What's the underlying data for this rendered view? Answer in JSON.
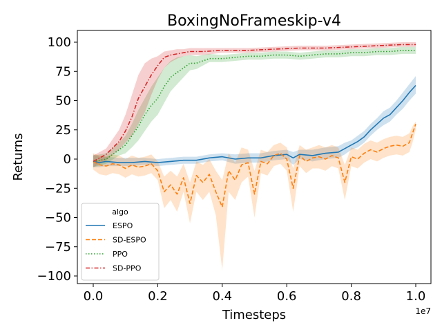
{
  "chart_data": {
    "type": "line",
    "title": "BoxingNoFrameskip-v4",
    "xlabel": "Timesteps",
    "ylabel": "Returns",
    "x_offset_label": "1e7",
    "xlim": [
      -0.025,
      1.05
    ],
    "ylim": [
      -110,
      110
    ],
    "xticks": [
      0.0,
      0.2,
      0.4,
      0.6,
      0.8,
      1.0
    ],
    "xtick_labels": [
      "0.0",
      "0.2",
      "0.4",
      "0.6",
      "0.8",
      "1.0"
    ],
    "yticks": [
      -100,
      -75,
      -50,
      -25,
      0,
      25,
      50,
      75,
      100
    ],
    "ytick_labels": [
      "−100",
      "−75",
      "−50",
      "−25",
      "0",
      "25",
      "50",
      "75",
      "100"
    ],
    "legend": {
      "title": "algo",
      "placement": "lower-left"
    },
    "series": [
      {
        "name": "ESPO",
        "color": "#1f77b4",
        "dash": "solid",
        "x": [
          0.0,
          0.02,
          0.04,
          0.08,
          0.12,
          0.16,
          0.2,
          0.24,
          0.28,
          0.32,
          0.36,
          0.4,
          0.44,
          0.48,
          0.52,
          0.56,
          0.6,
          0.62,
          0.64,
          0.68,
          0.72,
          0.76,
          0.78,
          0.8,
          0.82,
          0.84,
          0.86,
          0.88,
          0.9,
          0.92,
          0.94,
          0.96,
          0.98,
          1.0
        ],
        "y": [
          -2,
          -3,
          -2,
          -3,
          -3,
          -2,
          -3,
          -2,
          -1,
          -1,
          1,
          2,
          0,
          1,
          1,
          3,
          4,
          1,
          4,
          3,
          5,
          6,
          9,
          12,
          15,
          19,
          25,
          30,
          35,
          38,
          44,
          50,
          57,
          63
        ],
        "upper": [
          4,
          2,
          2,
          1,
          1,
          1,
          0,
          1,
          2,
          2,
          4,
          5,
          4,
          5,
          5,
          7,
          8,
          6,
          8,
          8,
          10,
          11,
          14,
          16,
          20,
          24,
          30,
          35,
          41,
          44,
          50,
          57,
          64,
          71
        ],
        "lower": [
          -7,
          -7,
          -6,
          -6,
          -6,
          -5,
          -6,
          -5,
          -4,
          -4,
          -2,
          -1,
          -4,
          -3,
          -3,
          -1,
          0,
          -5,
          0,
          -2,
          0,
          1,
          4,
          8,
          10,
          14,
          20,
          25,
          29,
          32,
          38,
          43,
          50,
          56
        ]
      },
      {
        "name": "SD-ESPO",
        "color": "#ff7f0e",
        "dash": "dashed",
        "x": [
          0.0,
          0.02,
          0.04,
          0.06,
          0.08,
          0.1,
          0.12,
          0.14,
          0.16,
          0.18,
          0.2,
          0.22,
          0.24,
          0.26,
          0.28,
          0.3,
          0.32,
          0.34,
          0.36,
          0.38,
          0.4,
          0.42,
          0.44,
          0.46,
          0.48,
          0.5,
          0.52,
          0.54,
          0.56,
          0.58,
          0.6,
          0.62,
          0.64,
          0.66,
          0.68,
          0.7,
          0.72,
          0.74,
          0.76,
          0.78,
          0.8,
          0.82,
          0.84,
          0.86,
          0.88,
          0.9,
          0.92,
          0.94,
          0.96,
          0.98,
          0.99,
          1.0
        ],
        "y": [
          -2,
          -5,
          -6,
          -4,
          -5,
          -8,
          -5,
          -7,
          -6,
          -4,
          -10,
          -28,
          -22,
          -30,
          -16,
          -38,
          -14,
          -20,
          -13,
          -28,
          -41,
          -10,
          -18,
          -5,
          -3,
          -30,
          -2,
          -4,
          3,
          5,
          0,
          -25,
          3,
          -2,
          1,
          2,
          0,
          3,
          1,
          -20,
          2,
          0,
          5,
          8,
          6,
          9,
          11,
          12,
          11,
          14,
          22,
          30
        ],
        "upper": [
          5,
          3,
          2,
          4,
          3,
          0,
          3,
          1,
          2,
          4,
          -2,
          -15,
          -10,
          -15,
          -4,
          -20,
          -2,
          -5,
          0,
          -10,
          -18,
          5,
          -3,
          10,
          8,
          -10,
          8,
          6,
          12,
          14,
          10,
          -8,
          12,
          8,
          10,
          12,
          10,
          12,
          10,
          -5,
          10,
          8,
          13,
          16,
          14,
          17,
          19,
          20,
          19,
          22,
          28,
          32
        ],
        "lower": [
          -9,
          -13,
          -14,
          -12,
          -13,
          -16,
          -13,
          -15,
          -14,
          -12,
          -18,
          -42,
          -35,
          -45,
          -28,
          -55,
          -28,
          -35,
          -28,
          -48,
          -95,
          -28,
          -35,
          -20,
          -15,
          -50,
          -12,
          -14,
          -6,
          -4,
          -10,
          -45,
          -6,
          -12,
          -8,
          -8,
          -10,
          -6,
          -8,
          -35,
          -6,
          -8,
          -3,
          0,
          -2,
          1,
          3,
          4,
          3,
          6,
          14,
          25
        ]
      },
      {
        "name": "PPO",
        "color": "#2ca02c",
        "dash": "dotted",
        "x": [
          0.0,
          0.04,
          0.08,
          0.1,
          0.12,
          0.14,
          0.16,
          0.18,
          0.2,
          0.22,
          0.24,
          0.26,
          0.28,
          0.3,
          0.32,
          0.34,
          0.36,
          0.4,
          0.44,
          0.48,
          0.52,
          0.56,
          0.6,
          0.64,
          0.68,
          0.72,
          0.76,
          0.8,
          0.84,
          0.88,
          0.92,
          0.96,
          1.0
        ],
        "y": [
          -2,
          0,
          8,
          12,
          20,
          28,
          38,
          46,
          52,
          62,
          70,
          74,
          78,
          82,
          82,
          84,
          86,
          86,
          87,
          88,
          88,
          89,
          89,
          88,
          89,
          90,
          90,
          91,
          91,
          92,
          92,
          93,
          93
        ],
        "upper": [
          3,
          5,
          14,
          20,
          30,
          42,
          52,
          62,
          70,
          78,
          84,
          87,
          88,
          89,
          88,
          89,
          90,
          89,
          90,
          91,
          91,
          92,
          92,
          91,
          92,
          93,
          93,
          94,
          94,
          95,
          95,
          96,
          96
        ],
        "lower": [
          -7,
          -4,
          3,
          5,
          10,
          16,
          24,
          32,
          38,
          48,
          58,
          64,
          70,
          76,
          77,
          80,
          83,
          83,
          84,
          85,
          85,
          86,
          86,
          85,
          86,
          87,
          87,
          88,
          88,
          89,
          89,
          90,
          90
        ]
      },
      {
        "name": "SD-PPO",
        "color": "#d62728",
        "dash": "dashdot",
        "x": [
          0.0,
          0.04,
          0.08,
          0.1,
          0.12,
          0.14,
          0.16,
          0.18,
          0.2,
          0.22,
          0.24,
          0.26,
          0.28,
          0.3,
          0.34,
          0.4,
          0.48,
          0.56,
          0.64,
          0.72,
          0.8,
          0.88,
          0.96,
          1.0
        ],
        "y": [
          -2,
          4,
          15,
          24,
          36,
          52,
          62,
          72,
          80,
          87,
          89,
          90,
          91,
          92,
          92,
          93,
          93,
          94,
          95,
          95,
          96,
          97,
          98,
          98
        ],
        "upper": [
          3,
          9,
          25,
          38,
          55,
          72,
          82,
          86,
          88,
          92,
          93,
          94,
          94,
          95,
          95,
          95,
          95,
          96,
          97,
          97,
          98,
          99,
          100,
          100
        ],
        "lower": [
          -7,
          -1,
          8,
          14,
          20,
          30,
          40,
          55,
          68,
          78,
          83,
          86,
          88,
          89,
          89,
          91,
          91,
          92,
          93,
          93,
          94,
          95,
          96,
          96
        ]
      }
    ]
  }
}
